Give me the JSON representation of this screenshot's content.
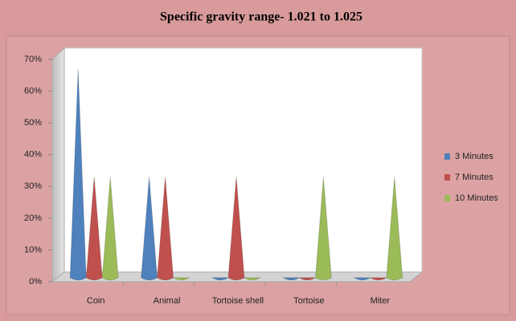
{
  "chart_data": {
    "type": "cone",
    "title": "Specific gravity range- 1.021 to 1.025",
    "categories": [
      "Coin",
      "Animal",
      "Tortoise shell",
      "Tortoise",
      "Miter"
    ],
    "series": [
      {
        "name": "3 Minutes",
        "color": "#4f81bd",
        "values": [
          67,
          33,
          0,
          0,
          0
        ]
      },
      {
        "name": "7 Minutes",
        "color": "#c0504d",
        "values": [
          33,
          33,
          33,
          0,
          0
        ]
      },
      {
        "name": "10 Minutes",
        "color": "#9bbb59",
        "values": [
          33,
          0,
          0,
          33,
          33
        ]
      }
    ],
    "ylim": [
      0,
      70
    ],
    "yticks": [
      {
        "value": 0,
        "label": "0%"
      },
      {
        "value": 10,
        "label": "10%"
      },
      {
        "value": 20,
        "label": "20%"
      },
      {
        "value": 30,
        "label": "30%"
      },
      {
        "value": 40,
        "label": "40%"
      },
      {
        "value": 50,
        "label": "50%"
      },
      {
        "value": 60,
        "label": "60%"
      },
      {
        "value": 70,
        "label": "70%"
      }
    ],
    "legend": "right"
  }
}
